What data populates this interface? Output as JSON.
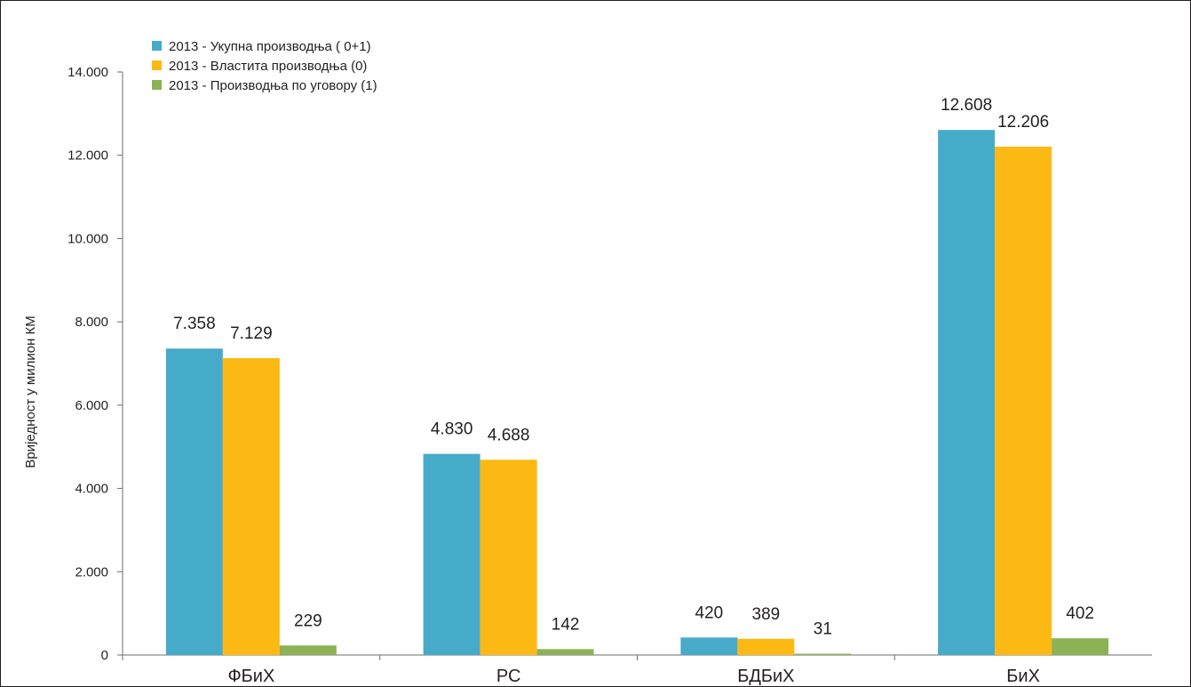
{
  "chart_data": {
    "type": "bar",
    "title": "",
    "xlabel": "",
    "ylabel": "Вриједност у милион КМ",
    "ylim": [
      0,
      14000
    ],
    "yticks": [
      0,
      2000,
      4000,
      6000,
      8000,
      10000,
      12000,
      14000
    ],
    "ytick_labels": [
      "0",
      "2.000",
      "4.000",
      "6.000",
      "8.000",
      "10.000",
      "12.000",
      "14.000"
    ],
    "categories": [
      "ФБиХ",
      "РС",
      "БДБиХ",
      "БиХ"
    ],
    "grid": false,
    "legend_position": "top-left",
    "series": [
      {
        "name": "2013 - Укупна производња ( 0+1)",
        "color": "#46abc8",
        "values": [
          7358,
          4830,
          420,
          12608
        ],
        "labels": [
          "7.358",
          "4.830",
          "420",
          "12.608"
        ]
      },
      {
        "name": "2013 - Властита производња (0)",
        "color": "#fdb913",
        "values": [
          7129,
          4688,
          389,
          12206
        ],
        "labels": [
          "7.129",
          "4.688",
          "389",
          "12.206"
        ]
      },
      {
        "name": "2013 - Производња по уговору (1)",
        "color": "#8db255",
        "values": [
          229,
          142,
          31,
          402
        ],
        "labels": [
          "229",
          "142",
          "31",
          "402"
        ]
      }
    ]
  }
}
